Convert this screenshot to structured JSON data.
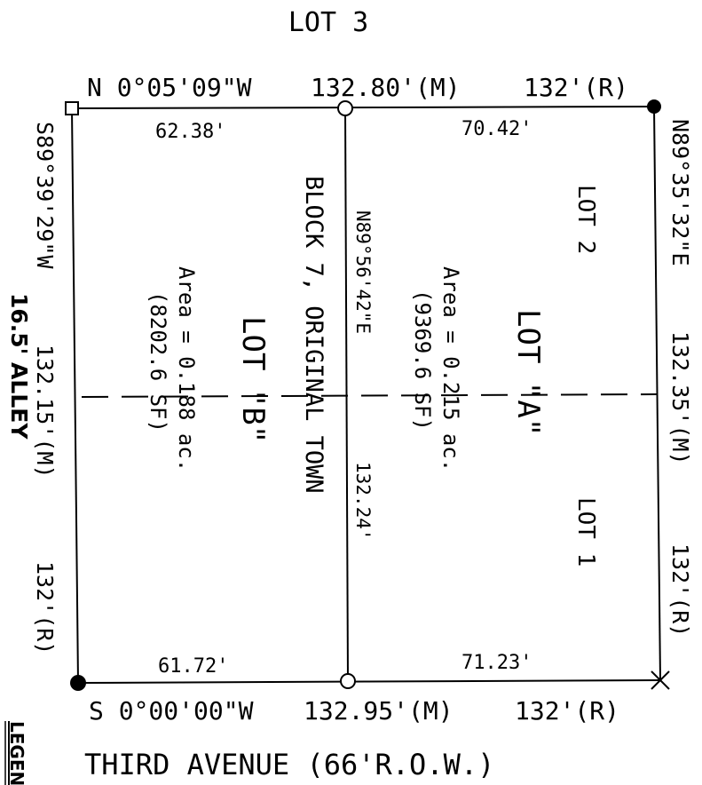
{
  "labels": {
    "lot3": "LOT 3",
    "north_bearing": "N 0°05'09\"W",
    "north_measured": "132.80'(M)",
    "north_record": "132'(R)",
    "north_left_segment": "62.38'",
    "north_right_segment": "70.42'",
    "south_bearing": "S 0°00'00\"W",
    "south_measured": "132.95'(M)",
    "south_record": "132'(R)",
    "south_left_segment": "61.72'",
    "south_right_segment": "71.23'",
    "street": "THIRD AVENUE (66'R.O.W.)",
    "west_bearing": "S89°39'29\"W",
    "west_measured": "132.15'(M)",
    "west_record": "132'(R)",
    "alley": "16.5' ALLEY",
    "east_bearing": "N89°35'32\"E",
    "east_measured": "132.35'(M)",
    "east_record": "132'(R)",
    "center_bearing": "N89°56'42\"E",
    "center_length": "132.24'",
    "block": "BLOCK 7, ORIGINAL TOWN",
    "lot_b": "LOT \"B\"",
    "lot_b_area": "Area = 0.188 ac.",
    "lot_b_sf": "(8202.6 SF)",
    "lot_a": "LOT \"A\"",
    "lot_a_area": "Area = 0.215 ac.",
    "lot_a_sf": "(9369.6 SF)",
    "lot2": "LOT 2",
    "lot1": "LOT 1",
    "legend": "LEGEN"
  }
}
